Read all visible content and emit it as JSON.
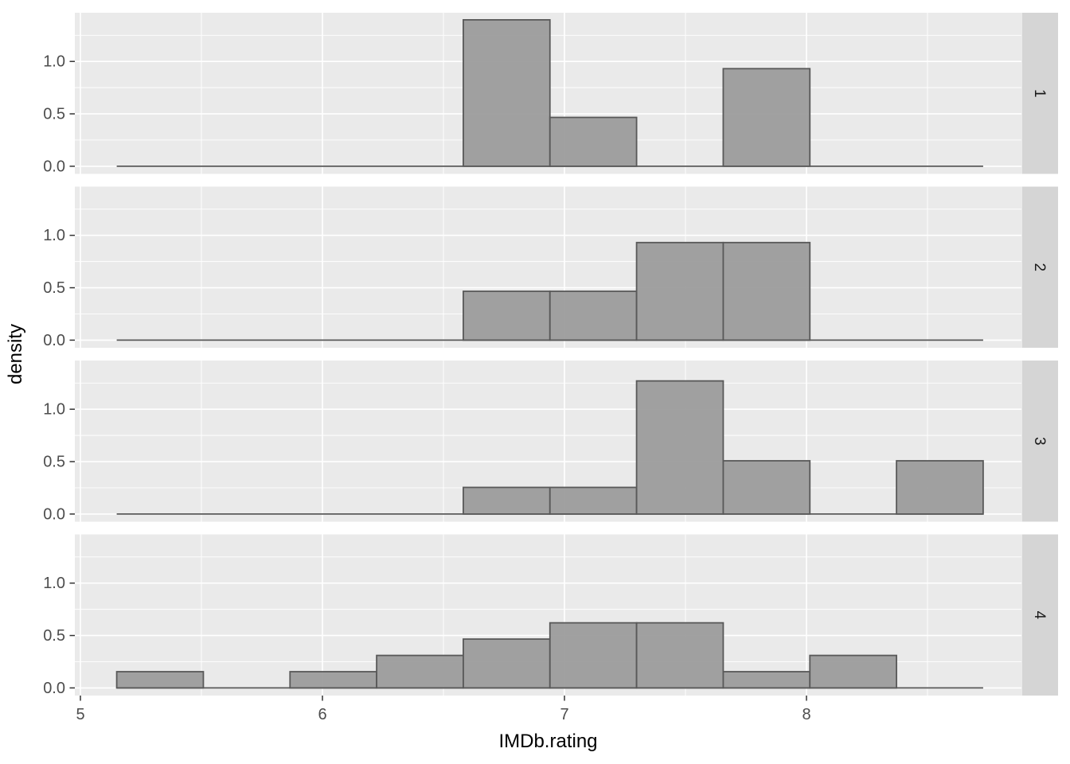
{
  "chart_data": {
    "type": "bar",
    "subtype": "faceted-density-histogram",
    "title": "",
    "xlabel": "IMDb.rating",
    "ylabel": "density",
    "grid": true,
    "legend": false,
    "facet_strip_side": "right",
    "facet_labels": [
      "1",
      "2",
      "3",
      "4"
    ],
    "x_ticks": [
      5,
      6,
      7,
      8
    ],
    "x_tick_labels": [
      "5",
      "6",
      "7",
      "8"
    ],
    "x_minor_ticks": [
      5.5,
      6.5,
      7.5,
      8.5
    ],
    "y_ticks": [
      0.0,
      0.5,
      1.0
    ],
    "y_tick_labels": [
      "0.0",
      "0.5",
      "1.0"
    ],
    "y_minor_ticks": [
      0.25,
      0.75,
      1.25
    ],
    "xlim": [
      4.977,
      8.888
    ],
    "ylim": [
      -0.073,
      1.465
    ],
    "bin_edges": [
      5.15,
      5.508,
      5.866,
      6.224,
      6.582,
      6.94,
      7.298,
      7.656,
      8.014,
      8.372,
      8.73
    ],
    "baseline_extent": [
      5.15,
      8.73
    ],
    "facets": [
      {
        "label": "1",
        "densities": [
          0,
          0,
          0,
          0,
          1.397,
          0.466,
          0,
          0.931,
          0,
          0
        ]
      },
      {
        "label": "2",
        "densities": [
          0,
          0,
          0,
          0,
          0.466,
          0.466,
          0.931,
          0.931,
          0,
          0
        ]
      },
      {
        "label": "3",
        "densities": [
          0,
          0,
          0,
          0,
          0.254,
          0.254,
          1.27,
          0.508,
          0,
          0.508
        ]
      },
      {
        "label": "4",
        "densities": [
          0.155,
          0,
          0.155,
          0.31,
          0.466,
          0.621,
          0.621,
          0.155,
          0.31,
          0
        ]
      }
    ],
    "colors": {
      "bar_fill": "#9A9A9A",
      "bar_stroke": "#595959",
      "panel_bg": "#EAEAEA",
      "grid": "#FFFFFF",
      "strip_bg": "#D5D5D5",
      "strip_text": "#1A1A1A",
      "axis_text": "#4D4D4D",
      "axis_title": "#000000",
      "tick_mark": "#333333",
      "page_bg": "#FFFFFF"
    }
  }
}
